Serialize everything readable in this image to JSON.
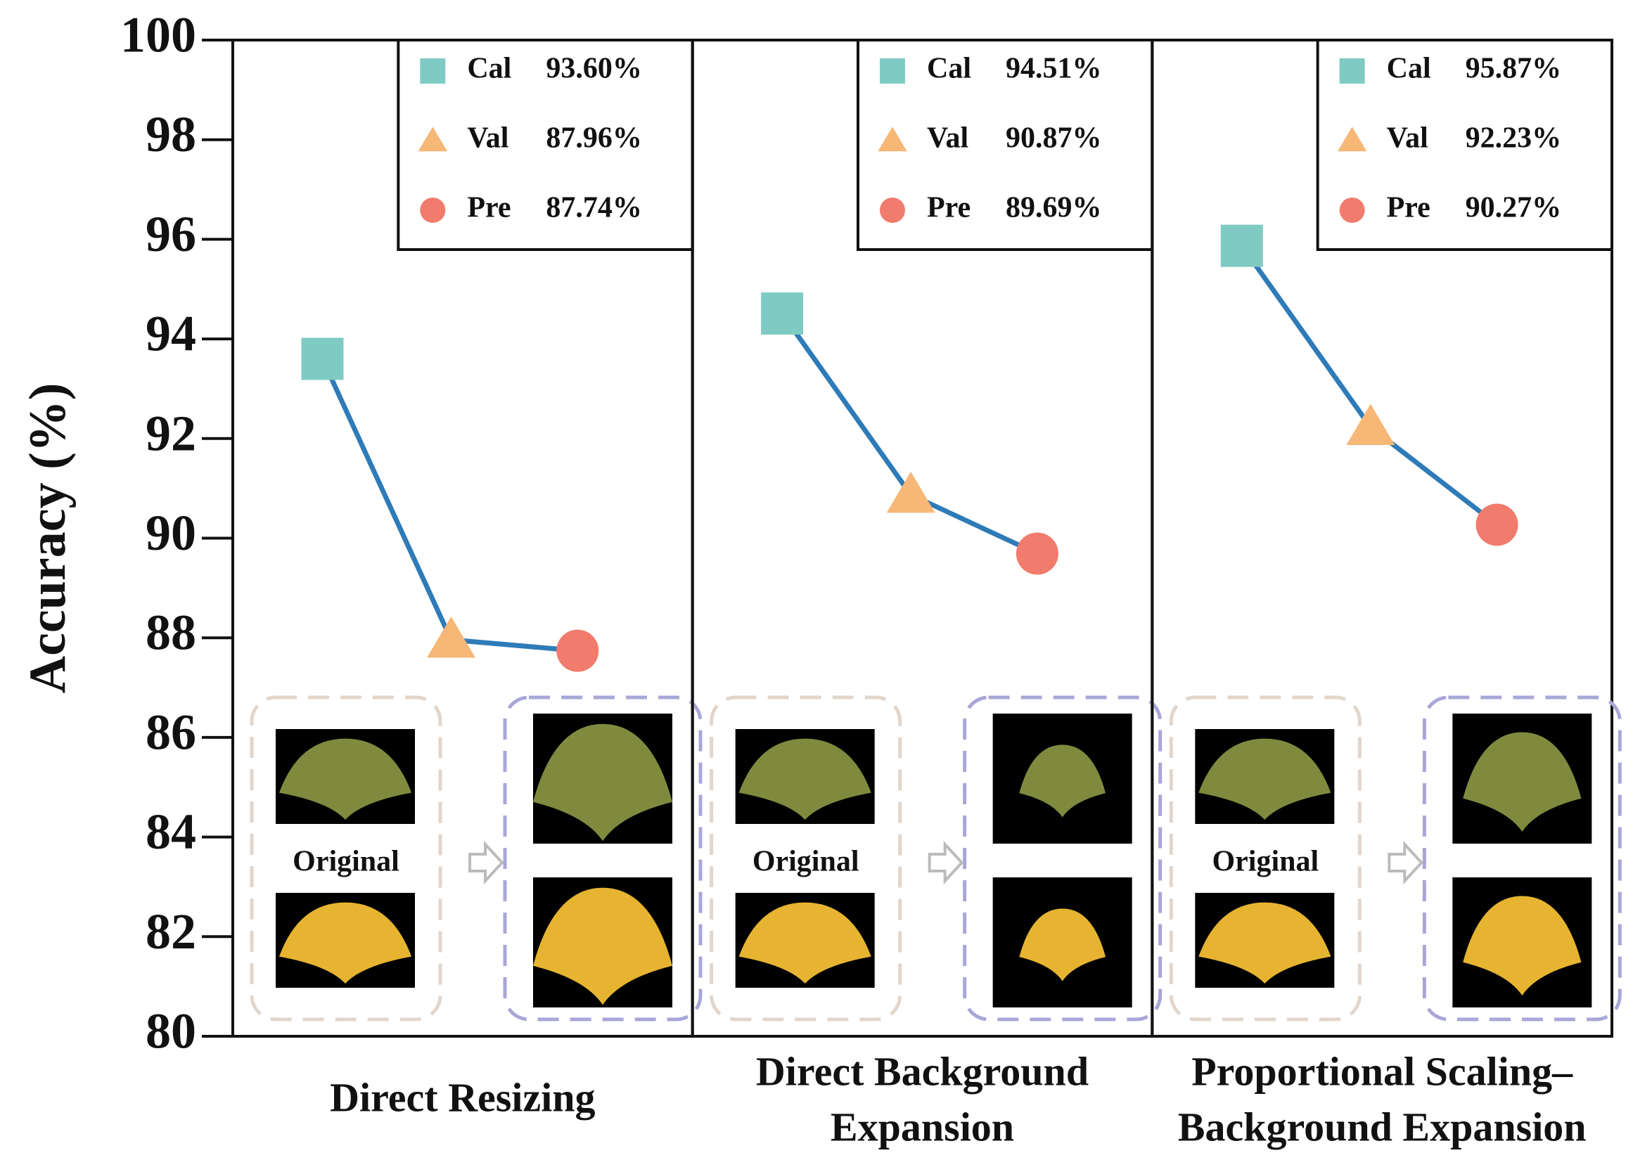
{
  "chart_data": {
    "type": "line",
    "ylabel": "Accuracy (%)",
    "ylim": [
      80,
      100
    ],
    "yticks": [
      80,
      82,
      84,
      86,
      88,
      90,
      92,
      94,
      96,
      98,
      100
    ],
    "line_color": "#2e7bb8",
    "marker_colors": [
      "#7fcbc4",
      "#f7b777",
      "#f17b6c"
    ],
    "marker_shapes": [
      "square",
      "triangle",
      "circle"
    ],
    "panels": [
      {
        "title_lines": [
          "Direct Resizing"
        ],
        "categories": [
          "Cal",
          "Val",
          "Pre"
        ],
        "values": [
          93.6,
          87.96,
          87.74
        ],
        "value_labels": [
          "93.60%",
          "87.96%",
          "87.74%"
        ],
        "image_label": "Original"
      },
      {
        "title_lines": [
          "Direct Background",
          "Expansion"
        ],
        "categories": [
          "Cal",
          "Val",
          "Pre"
        ],
        "values": [
          94.51,
          90.87,
          89.69
        ],
        "value_labels": [
          "94.51%",
          "90.87%",
          "89.69%"
        ],
        "image_label": "Original"
      },
      {
        "title_lines": [
          "Proportional Scaling–",
          "Background Expansion"
        ],
        "categories": [
          "Cal",
          "Val",
          "Pre"
        ],
        "values": [
          95.87,
          92.23,
          90.27
        ],
        "value_labels": [
          "95.87%",
          "92.23%",
          "90.27%"
        ],
        "image_label": "Original"
      }
    ]
  }
}
